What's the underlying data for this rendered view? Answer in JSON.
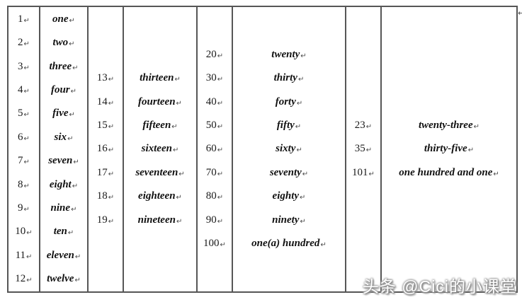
{
  "table": {
    "groups": [
      {
        "numbers": [
          "1",
          "2",
          "3",
          "4",
          "5",
          "6",
          "7",
          "8",
          "9",
          "10",
          "11",
          "12"
        ],
        "words": [
          "one",
          "two",
          "three",
          "four",
          "five",
          "six",
          "seven",
          "eight",
          "nine",
          "ten",
          "eleven",
          "twelve"
        ]
      },
      {
        "numbers": [
          "13",
          "14",
          "15",
          "16",
          "17",
          "18",
          "19"
        ],
        "words": [
          "thirteen",
          "fourteen",
          "fifteen",
          "sixteen",
          "seventeen",
          "eighteen",
          "nineteen"
        ]
      },
      {
        "numbers": [
          "20",
          "30",
          "40",
          "50",
          "60",
          "70",
          "80",
          "90",
          "100"
        ],
        "words": [
          "twenty",
          "thirty",
          "forty",
          "fifty",
          "sixty",
          "seventy",
          "eighty",
          "ninety",
          "one(a) hundred"
        ]
      },
      {
        "numbers": [
          "23",
          "35",
          "101"
        ],
        "words": [
          "twenty-three",
          "thirty-five",
          "one hundred and one"
        ]
      }
    ]
  },
  "marks": {
    "return_mark": "↵"
  },
  "watermark": {
    "text": "头条 @Cici的小课堂"
  },
  "colors": {
    "border": "#565656",
    "text": "#111111"
  }
}
